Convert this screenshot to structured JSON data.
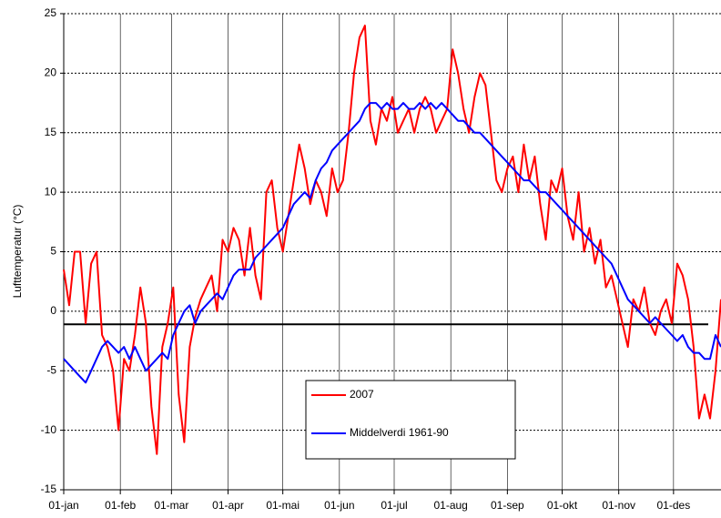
{
  "chart_data": {
    "type": "line",
    "ylabel": "Lufttemperatur (°C)",
    "x": [
      1,
      4,
      7,
      10,
      13,
      16,
      19,
      22,
      25,
      28,
      31,
      34,
      37,
      40,
      43,
      46,
      49,
      52,
      55,
      58,
      61,
      64,
      67,
      70,
      73,
      76,
      79,
      82,
      85,
      88,
      91,
      94,
      97,
      100,
      103,
      106,
      109,
      112,
      115,
      118,
      121,
      124,
      127,
      130,
      133,
      136,
      139,
      142,
      145,
      148,
      151,
      154,
      157,
      160,
      163,
      166,
      169,
      172,
      175,
      178,
      181,
      184,
      187,
      190,
      193,
      196,
      199,
      202,
      205,
      208,
      211,
      214,
      217,
      220,
      223,
      226,
      229,
      232,
      235,
      238,
      241,
      244,
      247,
      250,
      253,
      256,
      259,
      262,
      265,
      268,
      271,
      274,
      277,
      280,
      283,
      286,
      289,
      292,
      295,
      298,
      301,
      304,
      307,
      310,
      313,
      316,
      319,
      322,
      325,
      328,
      331,
      334,
      337,
      340,
      343,
      346,
      349,
      352,
      355,
      358,
      361
    ],
    "series": [
      {
        "name": "2007",
        "color": "#ff0000",
        "values": [
          3.5,
          0.5,
          5,
          5,
          -1,
          4,
          5,
          -2,
          -3,
          -5,
          -10,
          -4,
          -5,
          -2,
          2,
          -1,
          -8,
          -12,
          -3,
          -1,
          2,
          -7,
          -11,
          -3,
          -0.5,
          1,
          2,
          3,
          0,
          6,
          5,
          7,
          6,
          3,
          7,
          3,
          1,
          10,
          11,
          7,
          5,
          8,
          11,
          14,
          12,
          9,
          11,
          10,
          8,
          12,
          10,
          11,
          15,
          20,
          23,
          24,
          16,
          14,
          17,
          16,
          18,
          15,
          16,
          17,
          15,
          17,
          18,
          17,
          15,
          16,
          17,
          22,
          20,
          17,
          15,
          18,
          20,
          19,
          15,
          11,
          10,
          12,
          13,
          10,
          14,
          11,
          13,
          9,
          6,
          11,
          10,
          12,
          8,
          6,
          10,
          5,
          7,
          4,
          6,
          2,
          3,
          1,
          -1,
          -3,
          1,
          0,
          2,
          -1,
          -2,
          0,
          1,
          -1,
          4,
          3,
          1,
          -3,
          -9,
          -7,
          -9,
          -5,
          1
        ]
      },
      {
        "name": "Middelverdi 1961-90",
        "color": "#0000ff",
        "values": [
          -4,
          -4.5,
          -5,
          -5.5,
          -6,
          -5,
          -4,
          -3,
          -2.5,
          -3,
          -3.5,
          -3,
          -4,
          -3,
          -4,
          -5,
          -4.5,
          -4,
          -3.5,
          -4,
          -2,
          -1,
          0,
          0.5,
          -1,
          0,
          0.5,
          1,
          1.5,
          1,
          2,
          3,
          3.5,
          3.5,
          3.5,
          4.5,
          5,
          5.5,
          6,
          6.5,
          7,
          8,
          9,
          9.5,
          10,
          9.5,
          11,
          12,
          12.5,
          13.5,
          14,
          14.5,
          15,
          15.5,
          16,
          17,
          17.5,
          17.5,
          17,
          17.5,
          17,
          17,
          17.5,
          17,
          17,
          17.5,
          17,
          17.5,
          17,
          17.5,
          17,
          16.5,
          16,
          16,
          15.5,
          15,
          15,
          14.5,
          14,
          13.5,
          13,
          12.5,
          12,
          11.5,
          11,
          11,
          10.5,
          10,
          10,
          9.5,
          9,
          8.5,
          8,
          7.5,
          7,
          6.5,
          6,
          5.5,
          5,
          4.5,
          4,
          3,
          2,
          1,
          0.5,
          0,
          -0.5,
          -1,
          -0.5,
          -1,
          -1.5,
          -2,
          -2.5,
          -2,
          -3,
          -3.5,
          -3.5,
          -4,
          -4,
          -2,
          -3
        ]
      }
    ],
    "hline": -1.1,
    "xlim": [
      1,
      361
    ],
    "xticks": [
      {
        "value": 1,
        "label": "01-jan"
      },
      {
        "value": 32,
        "label": "01-feb"
      },
      {
        "value": 60,
        "label": "01-mar"
      },
      {
        "value": 91,
        "label": "01-apr"
      },
      {
        "value": 121,
        "label": "01-mai"
      },
      {
        "value": 152,
        "label": "01-jun"
      },
      {
        "value": 182,
        "label": "01-jul"
      },
      {
        "value": 213,
        "label": "01-aug"
      },
      {
        "value": 244,
        "label": "01-sep"
      },
      {
        "value": 274,
        "label": "01-okt"
      },
      {
        "value": 305,
        "label": "01-nov"
      },
      {
        "value": 335,
        "label": "01-des"
      }
    ],
    "ylim": [
      -15,
      25
    ],
    "yticks": [
      -15,
      -10,
      -5,
      0,
      5,
      10,
      15,
      20,
      25
    ],
    "grid": true,
    "legend": "bottom"
  }
}
